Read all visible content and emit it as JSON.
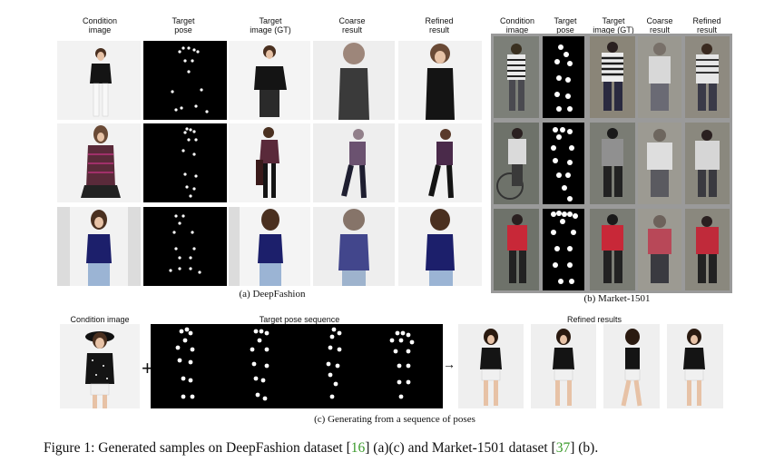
{
  "headers": {
    "deepfashion": [
      "Condition\nimage",
      "Target\npose",
      "Target\nimage (GT)",
      "Coarse\nresult",
      "Refined\nresult"
    ],
    "market": [
      "Condition\nimage",
      "Target\npose",
      "Target\nimage (GT)",
      "Coarse\nresult",
      "Refined\nresult"
    ],
    "sequence": {
      "condition": "Condition image",
      "pose": "Target pose sequence",
      "results": "Refined results"
    }
  },
  "subcaptions": {
    "a": "(a)  DeepFashion",
    "b": "(b) Market-1501",
    "c": "(c) Generating from a sequence of poses"
  },
  "figure_caption": {
    "prefix": "Figure 1: Generated samples on DeepFashion dataset [",
    "ref1": "16",
    "mid": "] (a)(c) and Market-1501 dataset [",
    "ref2": "37",
    "suffix": "] (b)."
  },
  "plus_symbol": "+",
  "arrow_symbol": "→",
  "colors": {
    "dress_black": "#141414",
    "dress_pattern": "#5a2a3a",
    "dress_blue": "#1c1f6b",
    "jeans": "#9bb4d4",
    "skin": "#e7c2a6",
    "bg": "#eeeeee",
    "market_bg": "#7c7f78"
  }
}
